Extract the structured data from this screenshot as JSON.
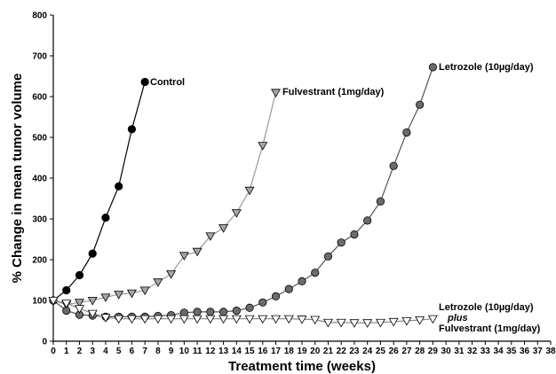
{
  "chart_data": {
    "type": "line",
    "xlabel": "Treatment time (weeks)",
    "ylabel": "% Change in mean tumor volume",
    "xlim": [
      0,
      38
    ],
    "ylim": [
      0,
      800
    ],
    "xticks": [
      0,
      1,
      2,
      3,
      4,
      5,
      6,
      7,
      8,
      9,
      10,
      11,
      12,
      13,
      14,
      15,
      16,
      17,
      18,
      19,
      20,
      21,
      22,
      23,
      24,
      25,
      26,
      27,
      28,
      29,
      30,
      31,
      32,
      33,
      34,
      35,
      36,
      37,
      38
    ],
    "yticks": [
      0,
      100,
      200,
      300,
      400,
      500,
      600,
      700,
      800
    ],
    "grid": false,
    "series": [
      {
        "name": "Control",
        "marker": "circle",
        "marker_color": "#000000",
        "line_color": "#000000",
        "x": [
          0,
          1,
          2,
          3,
          4,
          5,
          6,
          7
        ],
        "y": [
          100,
          125,
          162,
          215,
          303,
          380,
          520,
          636
        ]
      },
      {
        "name": "Fulvestrant (1mg/day)",
        "marker": "triangle-down",
        "marker_color": "#a6a6a6",
        "line_color": "#9a9a9a",
        "x": [
          0,
          1,
          2,
          3,
          4,
          5,
          6,
          7,
          8,
          9,
          10,
          11,
          12,
          13,
          14,
          15,
          16,
          17
        ],
        "y": [
          100,
          90,
          95,
          100,
          108,
          115,
          118,
          125,
          145,
          165,
          210,
          220,
          258,
          278,
          315,
          370,
          480,
          610
        ]
      },
      {
        "name": "Letrozole (10µg/day)",
        "marker": "circle",
        "marker_color": "#6b6b6b",
        "line_color": "#555555",
        "x": [
          0,
          1,
          2,
          3,
          4,
          5,
          6,
          7,
          8,
          9,
          10,
          11,
          12,
          13,
          14,
          15,
          16,
          17,
          18,
          19,
          20,
          21,
          22,
          23,
          24,
          25,
          26,
          27,
          28,
          29
        ],
        "y": [
          100,
          75,
          65,
          63,
          60,
          60,
          60,
          60,
          62,
          64,
          70,
          72,
          72,
          72,
          75,
          82,
          95,
          110,
          128,
          147,
          168,
          208,
          242,
          262,
          296,
          343,
          430,
          512,
          580,
          672
        ]
      },
      {
        "name_lines": [
          "Letrozole (10µg/day)",
          "plus",
          "Fulvestrant (1mg/day)"
        ],
        "marker": "triangle-down",
        "marker_color": "#ffffff",
        "line_color": "#888888",
        "x": [
          0,
          1,
          2,
          3,
          4,
          5,
          6,
          7,
          8,
          9,
          10,
          11,
          12,
          13,
          14,
          15,
          16,
          17,
          18,
          19,
          20,
          21,
          22,
          23,
          24,
          25,
          26,
          27,
          28,
          29
        ],
        "y": [
          100,
          93,
          80,
          68,
          58,
          55,
          55,
          55,
          55,
          55,
          55,
          55,
          55,
          55,
          55,
          55,
          55,
          55,
          55,
          54,
          53,
          46,
          46,
          45,
          45,
          46,
          48,
          50,
          52,
          55
        ]
      }
    ],
    "annotations": {
      "control": "Control",
      "fulvestrant": "Fulvestrant (1mg/day)",
      "letrozole": "Letrozole (10µg/day)",
      "combo_line1": "Letrozole (10µg/day)",
      "combo_line2": "plus",
      "combo_line3": "Fulvestrant (1mg/day)"
    }
  }
}
